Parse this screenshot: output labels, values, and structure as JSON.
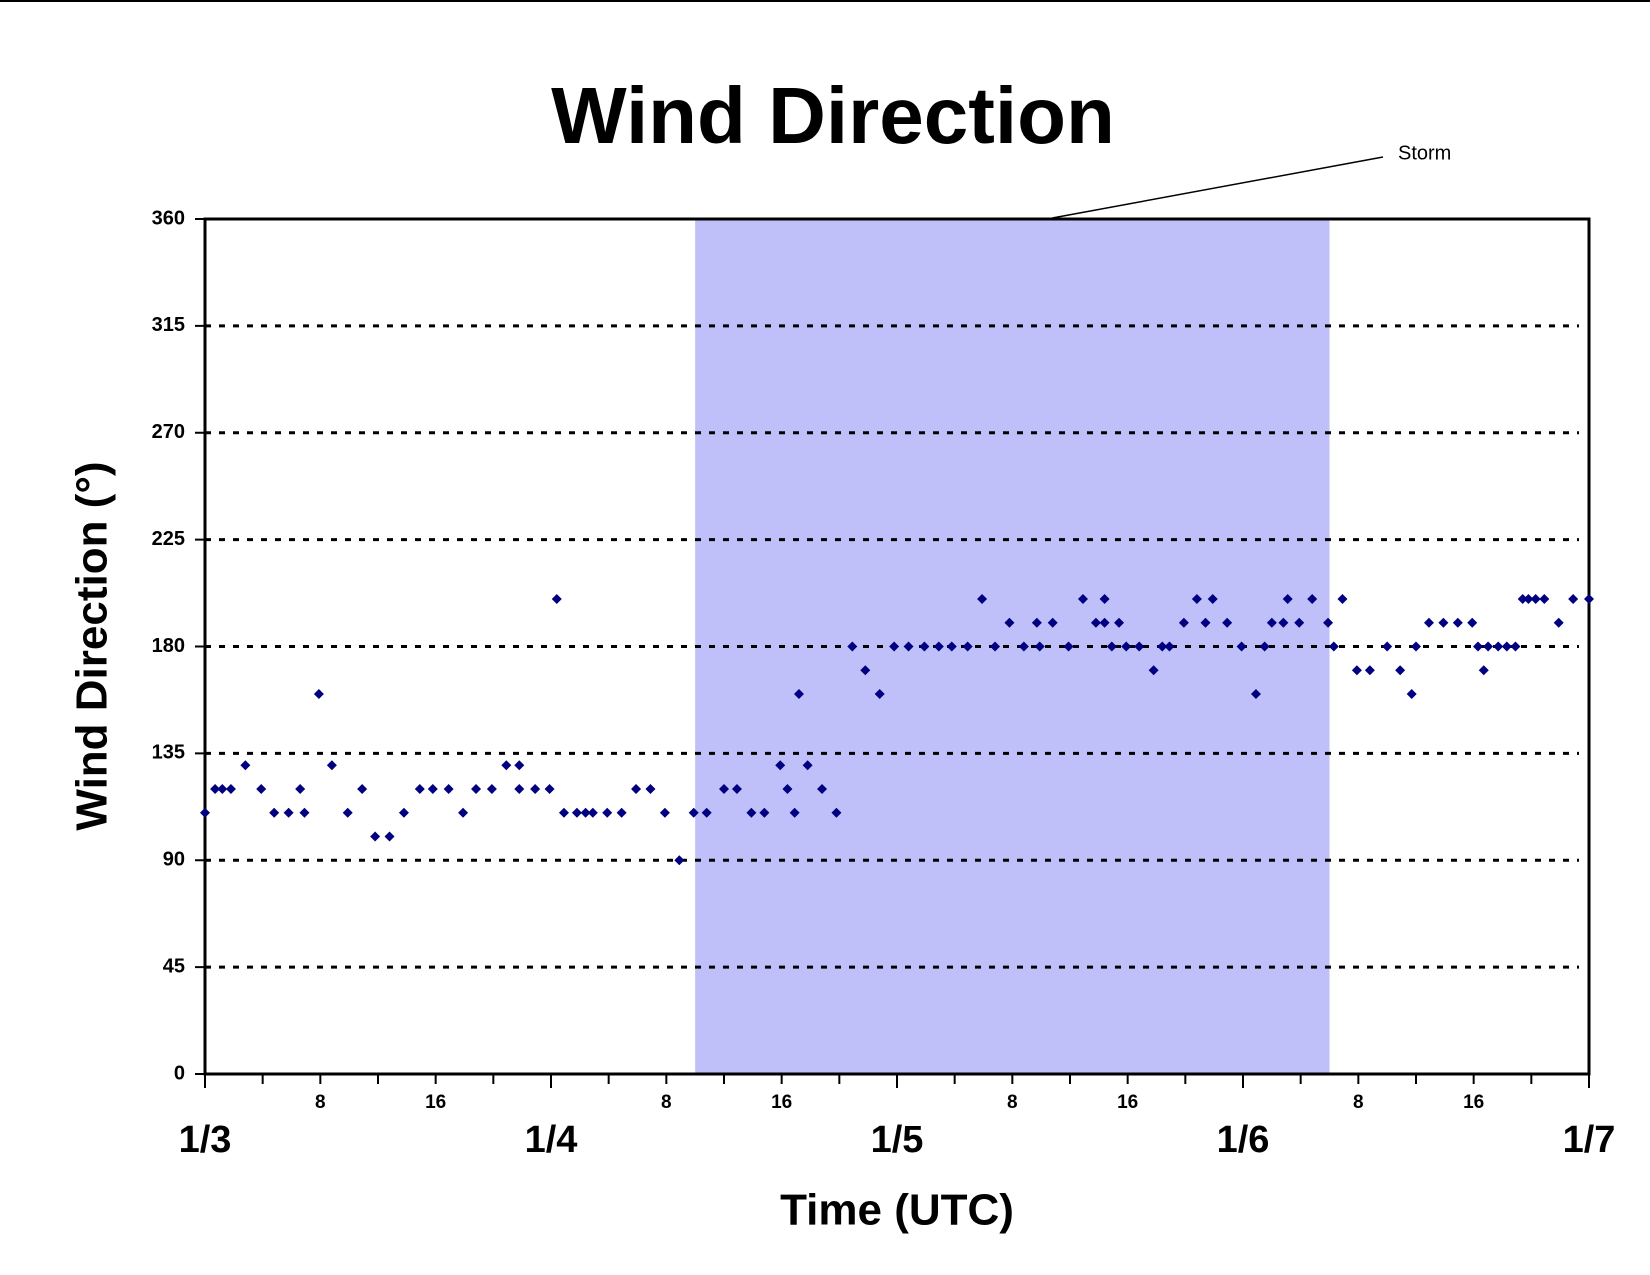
{
  "chart_data": {
    "type": "scatter",
    "title": "Wind Direction",
    "x_label": "Time (UTC)",
    "y_label": "Wind Direction (°)",
    "annotation": {
      "label": "Storm",
      "start": 34,
      "end": 78,
      "color": "#bfbffa"
    },
    "series": [
      {
        "color": "#000080",
        "x": [
          0,
          0.7,
          1.2,
          1.8,
          2.8,
          3.9,
          4.8,
          5.8,
          6.6,
          6.9,
          7.9,
          8.8,
          9.9,
          10.9,
          11.8,
          12.8,
          13.8,
          14.9,
          15.8,
          16.9,
          17.9,
          18.8,
          19.9,
          20.9,
          21.8,
          21.8,
          22.9,
          23.9,
          24.4,
          24.9,
          25.8,
          26.4,
          26.9,
          27.9,
          28.9,
          29.9,
          30.9,
          31.9,
          32.9,
          33.9,
          34.8,
          36.0,
          36.9,
          37.9,
          38.8,
          39.9,
          40.4,
          40.9,
          41.2,
          41.8,
          42.8,
          43.8,
          44.9,
          45.8,
          46.8,
          47.8,
          48.8,
          49.9,
          50.9,
          51.8,
          52.9,
          53.9,
          54.8,
          55.8,
          56.8,
          57.7,
          57.9,
          58.8,
          59.9,
          60.9,
          61.8,
          62.4,
          62.4,
          62.9,
          63.4,
          63.9,
          64.8,
          65.8,
          66.4,
          66.9,
          67.9,
          68.8,
          69.4,
          69.9,
          70.9,
          71.9,
          72.9,
          73.5,
          74.0,
          74.8,
          75.1,
          75.9,
          76.8,
          77.9,
          78.3,
          78.9,
          79.9,
          80.8,
          82.0,
          82.9,
          83.7,
          84.0,
          84.9,
          85.9,
          86.9,
          87.9,
          88.3,
          88.7,
          89.0,
          89.7,
          90.3,
          90.9,
          91.4,
          91.8,
          92.3,
          92.9,
          93.9,
          94.9,
          96.0
        ],
        "values": [
          110,
          120,
          120,
          120,
          130,
          120,
          110,
          110,
          120,
          110,
          160,
          130,
          110,
          120,
          100,
          100,
          110,
          120,
          120,
          120,
          110,
          120,
          120,
          130,
          130,
          120,
          120,
          120,
          200,
          110,
          110,
          110,
          110,
          110,
          110,
          120,
          120,
          110,
          90,
          110,
          110,
          120,
          120,
          110,
          110,
          130,
          120,
          110,
          160,
          130,
          120,
          110,
          180,
          170,
          160,
          180,
          180,
          180,
          180,
          180,
          180,
          200,
          180,
          190,
          180,
          190,
          180,
          190,
          180,
          200,
          190,
          200,
          190,
          180,
          190,
          180,
          180,
          170,
          180,
          180,
          190,
          200,
          190,
          200,
          190,
          180,
          160,
          180,
          190,
          190,
          200,
          190,
          200,
          190,
          180,
          200,
          170,
          170,
          180,
          170,
          160,
          180,
          190,
          190,
          190,
          190,
          180,
          170,
          180,
          180,
          180,
          180,
          200,
          200,
          200,
          200,
          190,
          200,
          200
        ]
      }
    ],
    "xlim": [
      0,
      96
    ],
    "xticks": [
      {
        "value": 0,
        "label": "1/3"
      },
      8,
      16,
      {
        "value": 24,
        "label": "1/4"
      },
      {
        "value": 32,
        "label": "8"
      },
      {
        "value": 40,
        "label": "16"
      },
      {
        "value": 48,
        "label": "1/5"
      },
      {
        "value": 56,
        "label": "8"
      },
      {
        "value": 64,
        "label": "16"
      },
      {
        "value": 72,
        "label": "1/6"
      },
      {
        "value": 80,
        "label": "8"
      },
      {
        "value": 88,
        "label": "16"
      },
      {
        "value": 96,
        "label": "1/7"
      }
    ],
    "xminorticks": [
      4,
      12,
      20,
      28,
      36,
      44,
      52,
      60,
      68,
      76,
      84,
      92
    ],
    "ylim": [
      0,
      360
    ],
    "yticks": [
      0,
      45,
      90,
      135,
      180,
      225,
      270,
      315,
      360
    ],
    "grid": true
  }
}
